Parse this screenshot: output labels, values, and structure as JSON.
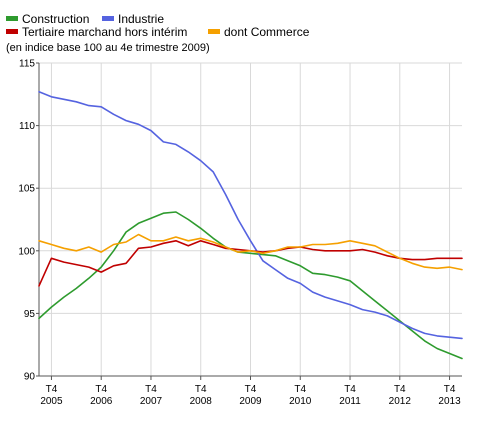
{
  "colors": {
    "construction": "#2e9b2e",
    "industrie": "#5563e0",
    "tertiaire": "#c00000",
    "commerce": "#f5a000",
    "grid": "#d9d9d9",
    "axis": "#555555"
  },
  "legend": {
    "construction": "Construction",
    "industrie": "Industrie",
    "tertiaire": "Tertiaire marchand hors intérim",
    "commerce": "dont Commerce"
  },
  "subtitle": "(en indice base 100 au 4e trimestre 2009)",
  "chart_data": {
    "type": "line",
    "title": "",
    "xlabel": "",
    "ylabel": "",
    "ylim": [
      90,
      115
    ],
    "y_ticks": [
      90,
      95,
      100,
      105,
      110,
      115
    ],
    "x_ticks": [
      {
        "q": "T4",
        "year": "2005"
      },
      {
        "q": "T4",
        "year": "2006"
      },
      {
        "q": "T4",
        "year": "2007"
      },
      {
        "q": "T4",
        "year": "2008"
      },
      {
        "q": "T4",
        "year": "2009"
      },
      {
        "q": "T4",
        "year": "2010"
      },
      {
        "q": "T4",
        "year": "2011"
      },
      {
        "q": "T4",
        "year": "2012"
      },
      {
        "q": "T4",
        "year": "2013"
      }
    ],
    "x": [
      "2005 T3",
      "2005 T4",
      "2006 T1",
      "2006 T2",
      "2006 T3",
      "2006 T4",
      "2007 T1",
      "2007 T2",
      "2007 T3",
      "2007 T4",
      "2008 T1",
      "2008 T2",
      "2008 T3",
      "2008 T4",
      "2009 T1",
      "2009 T2",
      "2009 T3",
      "2009 T4",
      "2010 T1",
      "2010 T2",
      "2010 T3",
      "2010 T4",
      "2011 T1",
      "2011 T2",
      "2011 T3",
      "2011 T4",
      "2012 T1",
      "2012 T2",
      "2012 T3",
      "2012 T4",
      "2013 T1",
      "2013 T2",
      "2013 T3",
      "2013 T4",
      "2014 T1"
    ],
    "grid": true,
    "legend_position": "top-left",
    "series": [
      {
        "key": "construction",
        "name": "Construction",
        "values": [
          94.6,
          95.5,
          96.3,
          97.0,
          97.8,
          98.7,
          100.0,
          101.5,
          102.2,
          102.6,
          103.0,
          103.1,
          102.5,
          101.8,
          101.0,
          100.3,
          99.9,
          99.8,
          99.7,
          99.6,
          99.2,
          98.8,
          98.2,
          98.1,
          97.9,
          97.6,
          96.8,
          96.0,
          95.2,
          94.4,
          93.6,
          92.8,
          92.2,
          91.8,
          91.4
        ]
      },
      {
        "key": "industrie",
        "name": "Industrie",
        "values": [
          112.7,
          112.3,
          112.1,
          111.9,
          111.6,
          111.5,
          110.9,
          110.4,
          110.1,
          109.6,
          108.7,
          108.5,
          107.9,
          107.2,
          106.3,
          104.5,
          102.5,
          100.8,
          99.2,
          98.5,
          97.8,
          97.4,
          96.7,
          96.3,
          96.0,
          95.7,
          95.3,
          95.1,
          94.8,
          94.3,
          93.8,
          93.4,
          93.2,
          93.1,
          93.0
        ]
      },
      {
        "key": "tertiaire",
        "name": "Tertiaire marchand hors intérim",
        "values": [
          97.2,
          99.4,
          99.1,
          98.9,
          98.7,
          98.3,
          98.8,
          99.0,
          100.2,
          100.3,
          100.6,
          100.8,
          100.4,
          100.8,
          100.5,
          100.2,
          100.1,
          100.0,
          99.9,
          100.0,
          100.2,
          100.3,
          100.1,
          100.0,
          100.0,
          100.0,
          100.1,
          99.9,
          99.6,
          99.4,
          99.3,
          99.3,
          99.4,
          99.4,
          99.4
        ]
      },
      {
        "key": "commerce",
        "name": "dont Commerce",
        "values": [
          100.8,
          100.5,
          100.2,
          100.0,
          100.3,
          99.9,
          100.5,
          100.7,
          101.3,
          100.8,
          100.8,
          101.1,
          100.8,
          101.0,
          100.7,
          100.3,
          99.9,
          100.0,
          99.8,
          100.0,
          100.3,
          100.3,
          100.5,
          100.5,
          100.6,
          100.8,
          100.6,
          100.4,
          99.9,
          99.4,
          99.0,
          98.7,
          98.6,
          98.7,
          98.5
        ]
      }
    ]
  }
}
